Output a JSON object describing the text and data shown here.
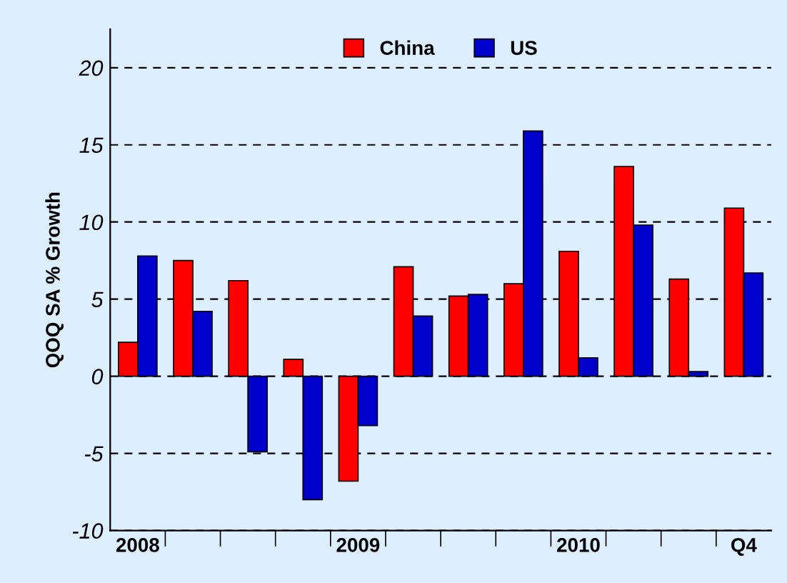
{
  "chart_data": {
    "type": "bar",
    "ylabel": "QOQ SA % Growth",
    "categories": [
      "2008",
      null,
      null,
      null,
      "2009",
      null,
      null,
      null,
      "2010",
      null,
      null,
      "Q4"
    ],
    "series": [
      {
        "name": "China",
        "color": "#ff0000",
        "values": [
          2.2,
          7.5,
          6.2,
          1.1,
          -6.8,
          7.1,
          5.2,
          6.0,
          8.1,
          13.6,
          6.3,
          10.9
        ]
      },
      {
        "name": "US",
        "color": "#0000cc",
        "values": [
          7.8,
          4.2,
          -4.9,
          -8.0,
          -3.2,
          3.9,
          5.3,
          15.9,
          1.2,
          9.8,
          0.3,
          6.7
        ]
      }
    ],
    "ylim": [
      -10,
      22.5
    ],
    "yticks": [
      -10,
      -5,
      0,
      5,
      10,
      15,
      20
    ],
    "grid": "y",
    "legend": "top"
  }
}
